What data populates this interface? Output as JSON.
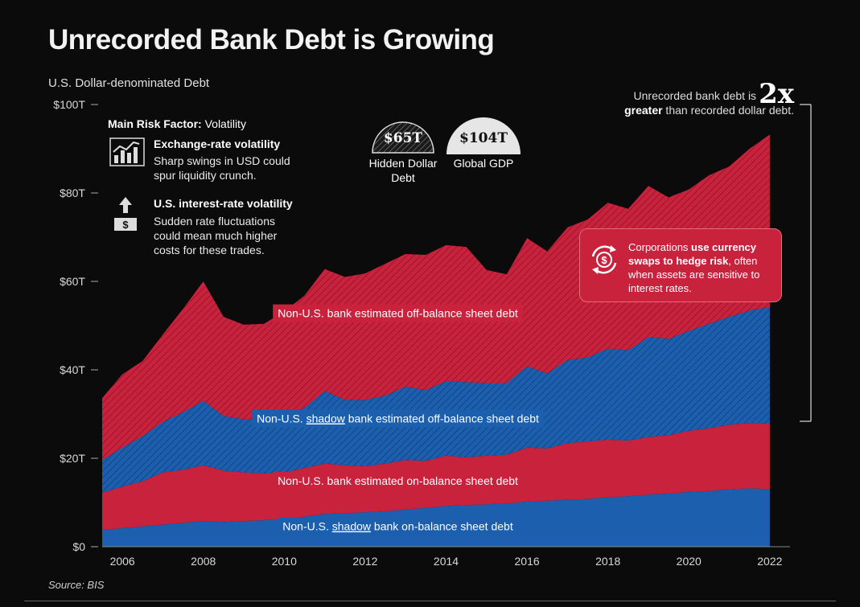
{
  "title": "Unrecorded Bank Debt is Growing",
  "subtitle": "U.S. Dollar-denominated Debt",
  "source": "Source: BIS",
  "risk_panel": {
    "heading_bold": "Main Risk Factor:",
    "heading_rest": " Volatility",
    "items": [
      {
        "title": "Exchange-rate volatility",
        "desc": "Sharp swings in USD could spur liquidity crunch.",
        "icon": "bar-chart-icon"
      },
      {
        "title": "U.S. interest-rate volatility",
        "desc": "Sudden rate fluctuations could mean much higher costs for these trades.",
        "icon": "dollar-up-arrow-icon"
      }
    ]
  },
  "badges": [
    {
      "value": "$65T",
      "label": "Hidden Dollar Debt"
    },
    {
      "value": "$104T",
      "label": "Global GDP"
    }
  ],
  "top_note": {
    "text_before": "Unrecorded bank debt is",
    "big": "2x",
    "bold": "greater",
    "text_after": " than recorded dollar debt."
  },
  "callout": {
    "text_before": "Corporations ",
    "bold": "use currency swaps to hedge risk",
    "text_after": ", often when assets are sensitive to interest rates.",
    "icon": "currency-swap-icon"
  },
  "colors": {
    "red": "#c8223d",
    "blue": "#1b5fae",
    "background": "#0b0b0b"
  },
  "chart_data": {
    "type": "area",
    "stacked": true,
    "title": "Unrecorded Bank Debt is Growing",
    "ylabel": "U.S. Dollar-denominated Debt",
    "ylim": [
      0,
      100
    ],
    "y_ticks": [
      "$0",
      "$20T",
      "$40T",
      "$60T",
      "$80T",
      "$100T"
    ],
    "y_tick_values": [
      0,
      20,
      40,
      60,
      80,
      100
    ],
    "x_ticks": [
      "2006",
      "2008",
      "2010",
      "2012",
      "2014",
      "2016",
      "2018",
      "2020",
      "2022"
    ],
    "x_tick_values": [
      2006,
      2008,
      2010,
      2012,
      2014,
      2016,
      2018,
      2020,
      2022
    ],
    "xlim": [
      2005.5,
      2022.5
    ],
    "grid": false,
    "x": [
      2005.5,
      2006,
      2006.5,
      2007,
      2007.5,
      2008,
      2008.5,
      2009,
      2009.5,
      2010,
      2010.5,
      2011,
      2011.5,
      2012,
      2012.5,
      2013,
      2013.5,
      2014,
      2014.5,
      2015,
      2015.5,
      2016,
      2016.5,
      2017,
      2017.5,
      2018,
      2018.5,
      2019,
      2019.5,
      2020,
      2020.5,
      2021,
      2021.5,
      2022
    ],
    "series": [
      {
        "name": "Non-U.S. shadow bank on-balance sheet debt",
        "color": "#1b5fae",
        "hatched": false,
        "values": [
          3.8,
          4.2,
          4.6,
          5.0,
          5.4,
          5.8,
          5.6,
          5.8,
          6.0,
          6.2,
          6.8,
          7.4,
          7.6,
          7.8,
          8.0,
          8.4,
          8.8,
          9.2,
          9.4,
          9.6,
          9.8,
          10.2,
          10.4,
          10.6,
          10.8,
          11.2,
          11.4,
          11.8,
          12.0,
          12.4,
          12.6,
          13.0,
          13.2,
          13.0
        ]
      },
      {
        "name": "Non-U.S. bank estimated on-balance sheet debt",
        "color": "#c8223d",
        "hatched": false,
        "values": [
          8.4,
          9.4,
          10.2,
          11.8,
          12.0,
          12.6,
          11.6,
          11.0,
          10.6,
          10.6,
          11.0,
          11.4,
          10.8,
          10.4,
          10.8,
          11.2,
          10.6,
          11.4,
          10.8,
          11.0,
          11.0,
          12.2,
          11.8,
          12.8,
          13.0,
          13.0,
          12.6,
          13.0,
          13.2,
          13.8,
          14.2,
          14.6,
          14.8,
          14.8
        ]
      },
      {
        "name": "Non-U.S. shadow bank estimated off-balance sheet debt",
        "color": "#1b5fae",
        "hatched": true,
        "values": [
          7.4,
          8.8,
          10.2,
          11.4,
          13.0,
          14.6,
          12.4,
          12.0,
          12.2,
          12.8,
          13.6,
          16.4,
          14.8,
          15.0,
          15.4,
          16.6,
          16.0,
          16.8,
          17.0,
          16.4,
          16.2,
          18.4,
          17.0,
          18.8,
          19.0,
          20.6,
          20.4,
          22.6,
          21.8,
          22.6,
          23.6,
          24.4,
          25.4,
          26.4
        ]
      },
      {
        "name": "Non-U.S. bank estimated off-balance sheet debt",
        "color": "#c8223d",
        "hatched": true,
        "values": [
          14.0,
          16.6,
          17.0,
          19.8,
          23.4,
          27.0,
          22.4,
          21.4,
          21.6,
          23.6,
          25.4,
          27.6,
          27.8,
          28.6,
          29.8,
          30.0,
          30.6,
          30.8,
          30.6,
          25.6,
          24.6,
          29.0,
          27.6,
          30.0,
          31.2,
          33.0,
          32.0,
          34.2,
          32.0,
          32.0,
          33.6,
          34.0,
          36.6,
          39.0
        ]
      }
    ],
    "area_labels": [
      {
        "text": "Non-U.S. bank estimated off-balance sheet debt",
        "series": 3
      },
      {
        "text_before": "Non-U.S. ",
        "underlined": "shadow",
        "text_after": " bank estimated off-balance sheet debt",
        "series": 2
      },
      {
        "text": "Non-U.S. bank estimated on-balance sheet debt",
        "series": 1
      },
      {
        "text_before": "Non-U.S. ",
        "underlined": "shadow",
        "text_after": " bank on-balance sheet debt",
        "series": 0
      }
    ]
  }
}
